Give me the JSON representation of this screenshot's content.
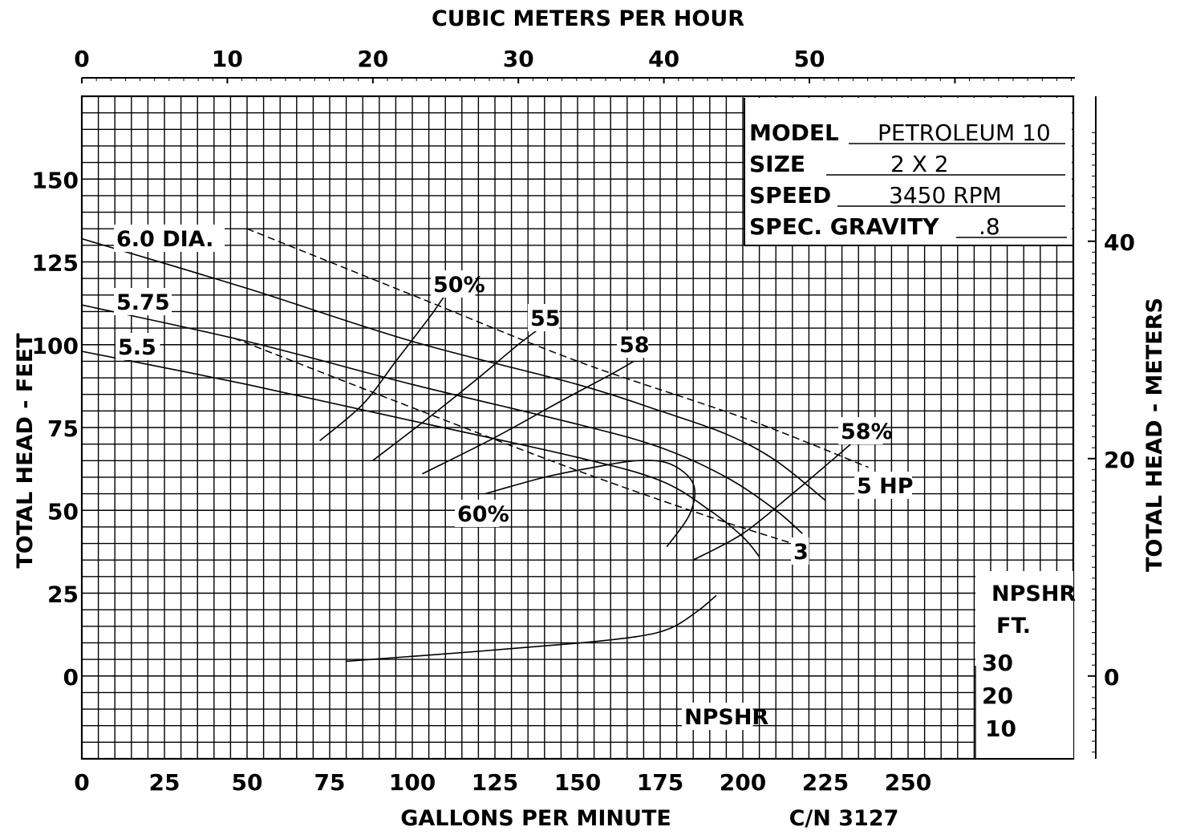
{
  "chart_data": {
    "type": "line",
    "title_top": "CUBIC METERS PER HOUR",
    "xlabel": "GALLONS PER MINUTE",
    "ylabel_left": "TOTAL HEAD - FEET",
    "ylabel_right": "TOTAL HEAD - METERS",
    "catalog_number": "C/N 3127",
    "x_gpm_ticks": [
      "0",
      "25",
      "50",
      "75",
      "100",
      "125",
      "150",
      "175",
      "200",
      "225",
      "250"
    ],
    "x_m3h_ticks": [
      "0",
      "10",
      "20",
      "30",
      "40",
      "50"
    ],
    "y_feet_ticks": [
      "150",
      "125",
      "100",
      "75",
      "50",
      "25",
      "0"
    ],
    "y_meters_ticks": [
      "40",
      "20",
      "0"
    ],
    "npshr_ticks": [
      "30",
      "20",
      "10"
    ],
    "npshr_axis_label": [
      "NPSHR",
      "FT."
    ],
    "xlim_gpm": [
      0,
      300
    ],
    "ylim_feet": [
      -25,
      175
    ],
    "grid": true,
    "info_box": {
      "model_label": "MODEL",
      "model_value": "PETROLEUM 10",
      "size_label": "SIZE",
      "size_value": "2 X 2",
      "speed_label": "SPEED",
      "speed_value": "3450 RPM",
      "gravity_label": "SPEC. GRAVITY",
      "gravity_value": ".8"
    },
    "series": [
      {
        "name": "6.0 DIA.",
        "kind": "head",
        "points": [
          [
            0,
            132
          ],
          [
            50,
            117
          ],
          [
            100,
            101
          ],
          [
            150,
            88
          ],
          [
            175,
            80
          ],
          [
            195,
            73
          ],
          [
            210,
            65
          ],
          [
            225,
            53
          ]
        ]
      },
      {
        "name": "5.75",
        "kind": "head",
        "points": [
          [
            0,
            112
          ],
          [
            50,
            101
          ],
          [
            100,
            88
          ],
          [
            150,
            76
          ],
          [
            175,
            69
          ],
          [
            195,
            60
          ],
          [
            210,
            50
          ],
          [
            218,
            43
          ]
        ]
      },
      {
        "name": "5.5",
        "kind": "head",
        "points": [
          [
            0,
            98
          ],
          [
            50,
            88
          ],
          [
            100,
            77
          ],
          [
            150,
            66
          ],
          [
            175,
            59
          ],
          [
            190,
            50
          ],
          [
            200,
            42
          ],
          [
            205,
            36
          ]
        ]
      },
      {
        "name": "50%",
        "kind": "efficiency",
        "points": [
          [
            72,
            71
          ],
          [
            85,
            82
          ],
          [
            95,
            95
          ],
          [
            105,
            108
          ],
          [
            110,
            115
          ],
          [
            112,
            117
          ]
        ]
      },
      {
        "name": "55",
        "kind": "efficiency",
        "points": [
          [
            88,
            65
          ],
          [
            105,
            78
          ],
          [
            120,
            90
          ],
          [
            132,
            100
          ],
          [
            140,
            106
          ]
        ]
      },
      {
        "name": "58",
        "kind": "efficiency",
        "points": [
          [
            103,
            61
          ],
          [
            125,
            72
          ],
          [
            145,
            83
          ],
          [
            160,
            91
          ],
          [
            167,
            95
          ]
        ]
      },
      {
        "name": "60%",
        "kind": "efficiency",
        "points": [
          [
            122,
            55
          ],
          [
            140,
            60
          ],
          [
            155,
            63
          ],
          [
            168,
            65
          ],
          [
            178,
            64
          ],
          [
            185,
            58
          ],
          [
            184,
            49
          ],
          [
            177,
            39
          ]
        ]
      },
      {
        "name": "58%",
        "kind": "efficiency",
        "points": [
          [
            185,
            35
          ],
          [
            200,
            43
          ],
          [
            215,
            55
          ],
          [
            228,
            66
          ],
          [
            235,
            72
          ]
        ]
      },
      {
        "name": "5 HP",
        "kind": "horsepower",
        "points": [
          [
            50,
            135
          ],
          [
            100,
            115
          ],
          [
            150,
            95
          ],
          [
            200,
            78
          ],
          [
            238,
            63
          ]
        ]
      },
      {
        "name": "3",
        "kind": "horsepower",
        "points": [
          [
            46,
            102
          ],
          [
            100,
            81
          ],
          [
            150,
            62
          ],
          [
            190,
            48
          ],
          [
            215,
            40
          ]
        ]
      },
      {
        "name": "NPSHR",
        "kind": "npshr",
        "points": [
          [
            80,
            4
          ],
          [
            120,
            7
          ],
          [
            150,
            9.5
          ],
          [
            168,
            11.5
          ],
          [
            178,
            14
          ],
          [
            186,
            19
          ],
          [
            192,
            24
          ]
        ]
      }
    ]
  }
}
